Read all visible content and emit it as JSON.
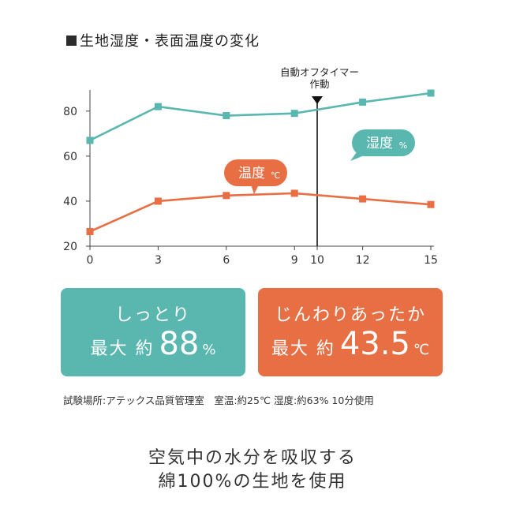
{
  "header": {
    "title": "生地湿度・表面温度の変化"
  },
  "chart_data": {
    "type": "line",
    "x": [
      0,
      3,
      6,
      9,
      10,
      12,
      15
    ],
    "xticks": [
      "0",
      "3",
      "6",
      "9",
      "10",
      "12",
      "15"
    ],
    "xlim": [
      0,
      15
    ],
    "yticks": [
      "20",
      "40",
      "60",
      "80"
    ],
    "ylim": [
      20,
      88
    ],
    "grid": false,
    "series": [
      {
        "name": "湿度",
        "unit": "%",
        "color": "#5ab7b0",
        "points": [
          [
            0,
            67
          ],
          [
            3,
            82
          ],
          [
            6,
            78
          ],
          [
            9,
            79
          ],
          [
            12,
            84
          ],
          [
            15,
            88
          ]
        ]
      },
      {
        "name": "温度",
        "unit": "℃",
        "color": "#e86e44",
        "points": [
          [
            0,
            26.5
          ],
          [
            3,
            40
          ],
          [
            6,
            42.5
          ],
          [
            9,
            43.5
          ],
          [
            12,
            41
          ],
          [
            15,
            38.5
          ]
        ]
      }
    ],
    "annotation": {
      "x": 10,
      "line1": "自動オフタイマー",
      "line2": "作動"
    }
  },
  "cards": {
    "humidity": {
      "headline": "しっとり",
      "label": "最大 約",
      "value": "88",
      "unit": "%",
      "color": "#5ab7b0"
    },
    "temperature": {
      "headline": "じんわりあったか",
      "label": "最大 約",
      "value": "43.5",
      "unit": "℃",
      "color": "#e86e44"
    }
  },
  "conditions": "試験場所:アテックス品質管理室　室温:約25℃ 湿度:約63% 10分使用",
  "tagline": {
    "line1": "空気中の水分を吸収する",
    "line2": "綿100%の生地を使用"
  }
}
